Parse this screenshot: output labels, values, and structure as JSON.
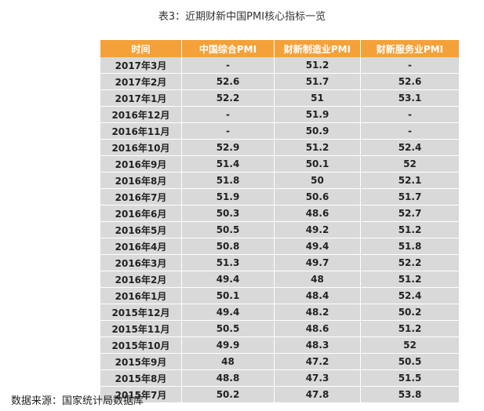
{
  "title": "表3：近期财新中国PMI核心指标一览",
  "table": {
    "headers": [
      "时间",
      "中国综合PMI",
      "财新制造业PMI",
      "财新服务业PMI"
    ],
    "rows": [
      [
        "2017年3月",
        "-",
        "51.2",
        "-"
      ],
      [
        "2017年2月",
        "52.6",
        "51.7",
        "52.6"
      ],
      [
        "2017年1月",
        "52.2",
        "51",
        "53.1"
      ],
      [
        "2016年12月",
        "-",
        "51.9",
        "-"
      ],
      [
        "2016年11月",
        "-",
        "50.9",
        "-"
      ],
      [
        "2016年10月",
        "52.9",
        "51.2",
        "52.4"
      ],
      [
        "2016年9月",
        "51.4",
        "50.1",
        "52"
      ],
      [
        "2016年8月",
        "51.8",
        "50",
        "52.1"
      ],
      [
        "2016年7月",
        "51.9",
        "50.6",
        "51.7"
      ],
      [
        "2016年6月",
        "50.3",
        "48.6",
        "52.7"
      ],
      [
        "2016年5月",
        "50.5",
        "49.2",
        "51.2"
      ],
      [
        "2016年4月",
        "50.8",
        "49.4",
        "51.8"
      ],
      [
        "2016年3月",
        "51.3",
        "49.7",
        "52.2"
      ],
      [
        "2016年2月",
        "49.4",
        "48",
        "51.2"
      ],
      [
        "2016年1月",
        "50.1",
        "48.4",
        "52.4"
      ],
      [
        "2015年12月",
        "49.4",
        "48.2",
        "50.2"
      ],
      [
        "2015年11月",
        "50.5",
        "48.6",
        "51.2"
      ],
      [
        "2015年10月",
        "49.9",
        "48.3",
        "52"
      ],
      [
        "2015年9月",
        "48",
        "47.2",
        "50.5"
      ],
      [
        "2015年8月",
        "48.8",
        "47.3",
        "51.5"
      ],
      [
        "2015年7月",
        "50.2",
        "47.8",
        "53.8"
      ]
    ]
  },
  "footer": "数据来源：国家统计局数据库",
  "colors": {
    "header_bg": "#f4a13a",
    "cell_bg": "#d9d9d9",
    "grid": "#ffffff"
  }
}
